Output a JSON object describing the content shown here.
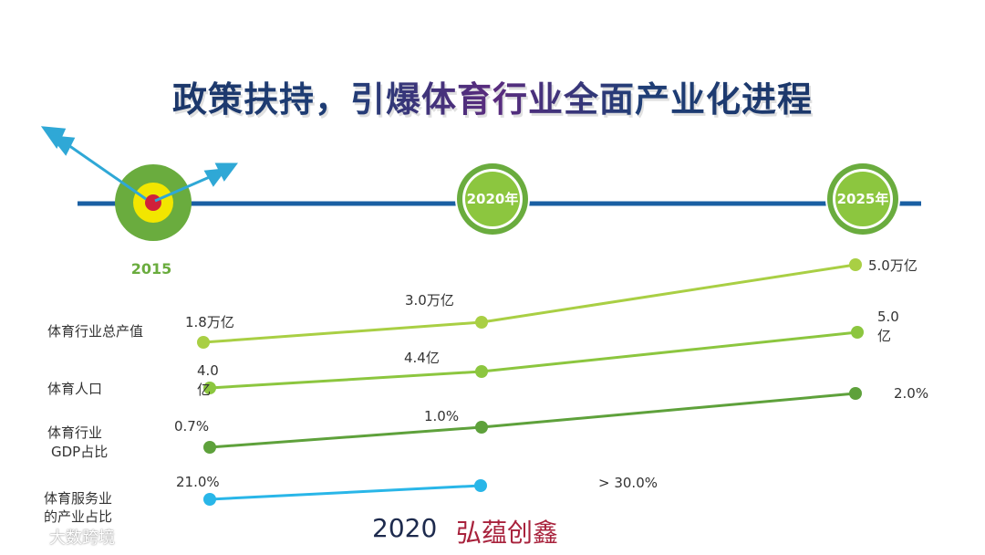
{
  "title": "政策扶持，引爆体育行业全面产业化进程",
  "timeline": {
    "start_label": "2015",
    "milestones": [
      "2020年",
      "2025年"
    ]
  },
  "rows": [
    {
      "label": "体育行业总产值",
      "values": [
        "1.8万亿",
        "3.0万亿",
        "5.0万亿"
      ],
      "color": "#a9cf44"
    },
    {
      "label": "体育人口",
      "values": [
        "4.0亿",
        "4.4亿",
        "5.0亿"
      ],
      "color": "#8cc63f"
    },
    {
      "label": "体育行业GDP占比",
      "label_lines": [
        "体育行业",
        "GDP占比"
      ],
      "values": [
        "0.7%",
        "1.0%",
        "2.0%"
      ],
      "color": "#5ea13b"
    },
    {
      "label": "体育服务业的产业占比",
      "label_lines": [
        "体育服务业",
        "的产业占比"
      ],
      "values": [
        "21.0%",
        "",
        "> 30.0%"
      ],
      "color": "#29b6e8"
    }
  ],
  "footer": {
    "year": "2020",
    "brand": "弘蕴创鑫"
  },
  "watermark": "大数跨境",
  "colors": {
    "timeline": "#1a5fa3",
    "green_ring": "#6aac3e",
    "target_yellow": "#f2e600",
    "target_red": "#d0213a",
    "arrow": "#2fa8d6"
  }
}
